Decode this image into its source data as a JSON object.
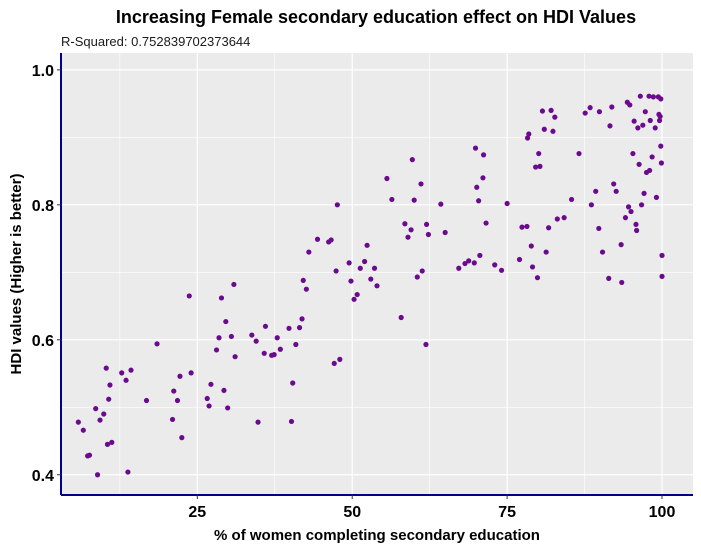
{
  "chart_data": {
    "type": "scatter",
    "title": "Increasing Female secondary education effect on HDI Values",
    "subtitle": "R-Squared:  0.752839702373644",
    "xlabel": "% of women completing secondary education",
    "ylabel": "HDI values (Higher is better)",
    "xlim": [
      3,
      105
    ],
    "ylim": [
      0.37,
      1.025
    ],
    "x_ticks": [
      "25",
      "50",
      "75",
      "100"
    ],
    "x_tick_values": [
      25,
      50,
      75,
      100
    ],
    "y_ticks": [
      "0.4",
      "0.6",
      "0.8",
      "1.0"
    ],
    "y_tick_values": [
      0.4,
      0.6,
      0.8,
      1.0
    ],
    "grid": true,
    "colors": {
      "panel": "#ebebeb",
      "grid": "#ffffff",
      "point": "#6b0a8f",
      "axis_line": "#00008b"
    },
    "points": [
      [
        5.8,
        0.478
      ],
      [
        6.6,
        0.466
      ],
      [
        7.3,
        0.428
      ],
      [
        7.6,
        0.429
      ],
      [
        8.6,
        0.498
      ],
      [
        8.9,
        0.4
      ],
      [
        9.3,
        0.481
      ],
      [
        9.9,
        0.49
      ],
      [
        10.3,
        0.558
      ],
      [
        10.5,
        0.445
      ],
      [
        10.7,
        0.512
      ],
      [
        10.9,
        0.533
      ],
      [
        11.2,
        0.448
      ],
      [
        12.8,
        0.551
      ],
      [
        13.5,
        0.54
      ],
      [
        13.8,
        0.404
      ],
      [
        14.3,
        0.555
      ],
      [
        16.8,
        0.51
      ],
      [
        18.5,
        0.594
      ],
      [
        21.0,
        0.482
      ],
      [
        21.2,
        0.524
      ],
      [
        21.8,
        0.51
      ],
      [
        22.2,
        0.546
      ],
      [
        22.5,
        0.455
      ],
      [
        23.7,
        0.665
      ],
      [
        24.0,
        0.551
      ],
      [
        26.6,
        0.513
      ],
      [
        26.9,
        0.502
      ],
      [
        27.2,
        0.534
      ],
      [
        28.1,
        0.585
      ],
      [
        28.5,
        0.603
      ],
      [
        28.9,
        0.662
      ],
      [
        29.3,
        0.525
      ],
      [
        29.6,
        0.627
      ],
      [
        29.9,
        0.499
      ],
      [
        30.5,
        0.605
      ],
      [
        30.9,
        0.682
      ],
      [
        31.1,
        0.575
      ],
      [
        33.8,
        0.607
      ],
      [
        34.5,
        0.598
      ],
      [
        34.8,
        0.478
      ],
      [
        35.8,
        0.58
      ],
      [
        36.0,
        0.62
      ],
      [
        37.0,
        0.577
      ],
      [
        37.4,
        0.578
      ],
      [
        37.9,
        0.603
      ],
      [
        38.4,
        0.586
      ],
      [
        39.8,
        0.617
      ],
      [
        40.2,
        0.479
      ],
      [
        40.4,
        0.536
      ],
      [
        40.9,
        0.593
      ],
      [
        41.5,
        0.618
      ],
      [
        41.9,
        0.631
      ],
      [
        42.1,
        0.688
      ],
      [
        42.6,
        0.675
      ],
      [
        43.0,
        0.73
      ],
      [
        44.4,
        0.749
      ],
      [
        46.2,
        0.745
      ],
      [
        46.6,
        0.748
      ],
      [
        47.1,
        0.565
      ],
      [
        47.4,
        0.702
      ],
      [
        47.6,
        0.8
      ],
      [
        48.0,
        0.571
      ],
      [
        49.5,
        0.714
      ],
      [
        49.8,
        0.687
      ],
      [
        50.3,
        0.66
      ],
      [
        50.8,
        0.667
      ],
      [
        51.3,
        0.706
      ],
      [
        52.0,
        0.716
      ],
      [
        52.4,
        0.74
      ],
      [
        53.0,
        0.69
      ],
      [
        53.6,
        0.706
      ],
      [
        54.0,
        0.68
      ],
      [
        55.6,
        0.839
      ],
      [
        56.4,
        0.808
      ],
      [
        57.9,
        0.633
      ],
      [
        58.5,
        0.772
      ],
      [
        59.0,
        0.752
      ],
      [
        59.5,
        0.763
      ],
      [
        59.7,
        0.867
      ],
      [
        60.0,
        0.807
      ],
      [
        60.5,
        0.693
      ],
      [
        61.1,
        0.831
      ],
      [
        61.3,
        0.702
      ],
      [
        61.9,
        0.593
      ],
      [
        62.0,
        0.771
      ],
      [
        62.3,
        0.756
      ],
      [
        64.3,
        0.801
      ],
      [
        65.0,
        0.759
      ],
      [
        67.2,
        0.706
      ],
      [
        68.2,
        0.713
      ],
      [
        68.8,
        0.717
      ],
      [
        69.7,
        0.714
      ],
      [
        69.9,
        0.884
      ],
      [
        70.1,
        0.826
      ],
      [
        70.4,
        0.806
      ],
      [
        70.6,
        0.725
      ],
      [
        71.1,
        0.84
      ],
      [
        71.2,
        0.874
      ],
      [
        71.6,
        0.773
      ],
      [
        73.0,
        0.711
      ],
      [
        74.1,
        0.703
      ],
      [
        75.0,
        0.802
      ],
      [
        77.0,
        0.719
      ],
      [
        77.4,
        0.767
      ],
      [
        78.2,
        0.768
      ],
      [
        78.3,
        0.899
      ],
      [
        78.5,
        0.905
      ],
      [
        78.9,
        0.739
      ],
      [
        79.1,
        0.708
      ],
      [
        79.6,
        0.856
      ],
      [
        79.9,
        0.692
      ],
      [
        80.1,
        0.876
      ],
      [
        80.3,
        0.857
      ],
      [
        80.7,
        0.939
      ],
      [
        81.0,
        0.912
      ],
      [
        81.3,
        0.73
      ],
      [
        81.7,
        0.766
      ],
      [
        82.1,
        0.94
      ],
      [
        82.4,
        0.909
      ],
      [
        82.7,
        0.93
      ],
      [
        83.1,
        0.779
      ],
      [
        84.2,
        0.781
      ],
      [
        85.4,
        0.808
      ],
      [
        86.6,
        0.876
      ],
      [
        87.6,
        0.936
      ],
      [
        88.4,
        0.944
      ],
      [
        88.6,
        0.8
      ],
      [
        89.3,
        0.82
      ],
      [
        89.8,
        0.765
      ],
      [
        89.9,
        0.938
      ],
      [
        90.4,
        0.73
      ],
      [
        91.4,
        0.691
      ],
      [
        91.6,
        0.917
      ],
      [
        91.9,
        0.945
      ],
      [
        92.2,
        0.831
      ],
      [
        92.6,
        0.82
      ],
      [
        93.4,
        0.741
      ],
      [
        93.5,
        0.685
      ],
      [
        94.1,
        0.781
      ],
      [
        94.4,
        0.952
      ],
      [
        94.6,
        0.797
      ],
      [
        94.8,
        0.948
      ],
      [
        95.0,
        0.79
      ],
      [
        95.3,
        0.876
      ],
      [
        95.5,
        0.924
      ],
      [
        95.8,
        0.771
      ],
      [
        95.9,
        0.762
      ],
      [
        96.1,
        0.914
      ],
      [
        96.3,
        0.86
      ],
      [
        96.5,
        0.961
      ],
      [
        96.7,
        0.8
      ],
      [
        96.9,
        0.918
      ],
      [
        97.1,
        0.817
      ],
      [
        97.3,
        0.938
      ],
      [
        97.5,
        0.848
      ],
      [
        97.9,
        0.961
      ],
      [
        98.0,
        0.851
      ],
      [
        98.1,
        0.925
      ],
      [
        98.4,
        0.871
      ],
      [
        98.6,
        0.96
      ],
      [
        98.9,
        0.914
      ],
      [
        99.1,
        0.811
      ],
      [
        99.4,
        0.96
      ],
      [
        99.6,
        0.925
      ],
      [
        99.7,
        0.931
      ],
      [
        99.8,
        0.887
      ],
      [
        99.9,
        0.862
      ],
      [
        100.0,
        0.694
      ],
      [
        100.0,
        0.725
      ],
      [
        99.8,
        0.957
      ],
      [
        99.5,
        0.934
      ]
    ]
  }
}
